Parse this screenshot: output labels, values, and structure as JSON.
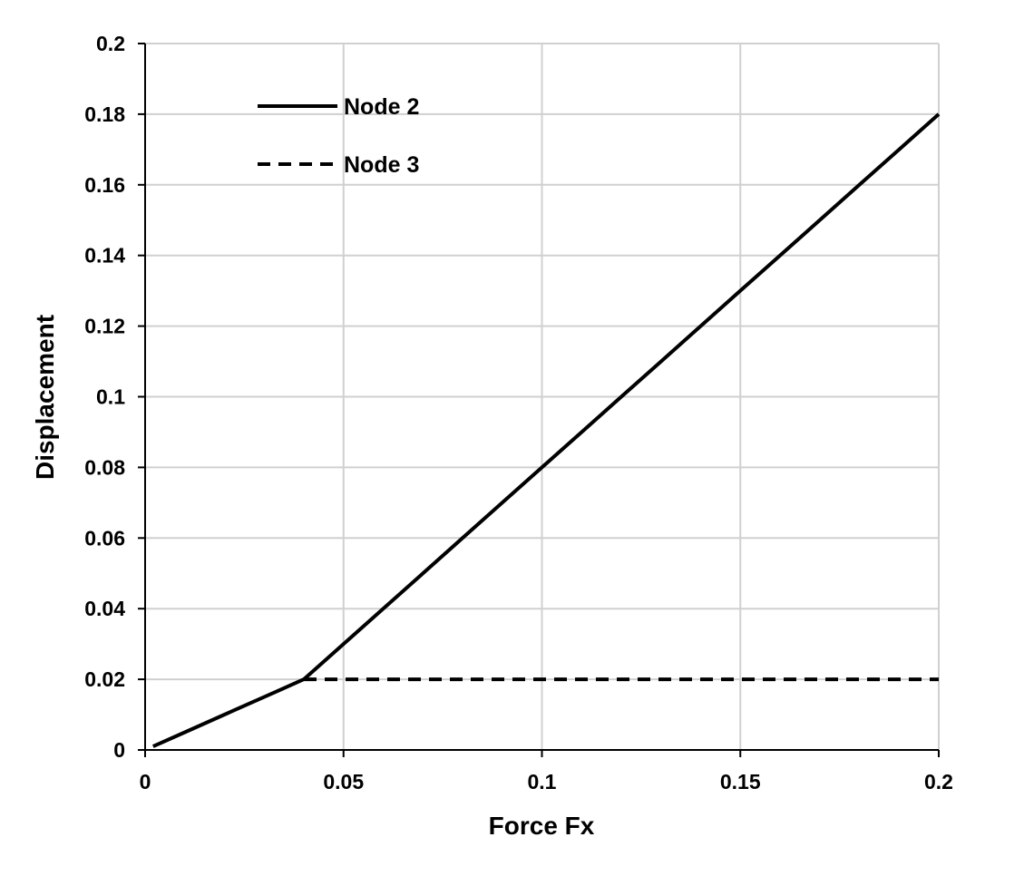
{
  "chart_data": {
    "type": "line",
    "title": "",
    "xlabel": "Force Fx",
    "ylabel": "Displacement",
    "xlim": [
      0,
      0.2
    ],
    "ylim": [
      0,
      0.2
    ],
    "xticks": [
      0,
      0.05,
      0.1,
      0.15,
      0.2
    ],
    "yticks": [
      0,
      0.02,
      0.04,
      0.06,
      0.08,
      0.1,
      0.12,
      0.14,
      0.16,
      0.18,
      0.2
    ],
    "xtick_labels": [
      "0",
      "0.05",
      "0.1",
      "0.15",
      "0.2"
    ],
    "ytick_labels": [
      "0",
      "0.02",
      "0.04",
      "0.06",
      "0.08",
      "0.1",
      "0.12",
      "0.14",
      "0.16",
      "0.18",
      "0.2"
    ],
    "grid": true,
    "legend_position": "top-left",
    "series": [
      {
        "name": "Node 2",
        "style": "solid",
        "color": "#000000",
        "x": [
          0.002,
          0.01,
          0.02,
          0.03,
          0.04,
          0.05,
          0.06,
          0.07,
          0.08,
          0.09,
          0.1,
          0.11,
          0.12,
          0.13,
          0.14,
          0.15,
          0.16,
          0.17,
          0.18,
          0.19,
          0.2
        ],
        "y": [
          0.001,
          0.005,
          0.01,
          0.015,
          0.02,
          0.03,
          0.04,
          0.05,
          0.06,
          0.07,
          0.08,
          0.09,
          0.1,
          0.11,
          0.12,
          0.13,
          0.14,
          0.15,
          0.16,
          0.17,
          0.18
        ]
      },
      {
        "name": "Node 3",
        "style": "dashed",
        "color": "#000000",
        "x": [
          0.04,
          0.2
        ],
        "y": [
          0.02,
          0.02
        ]
      }
    ]
  }
}
